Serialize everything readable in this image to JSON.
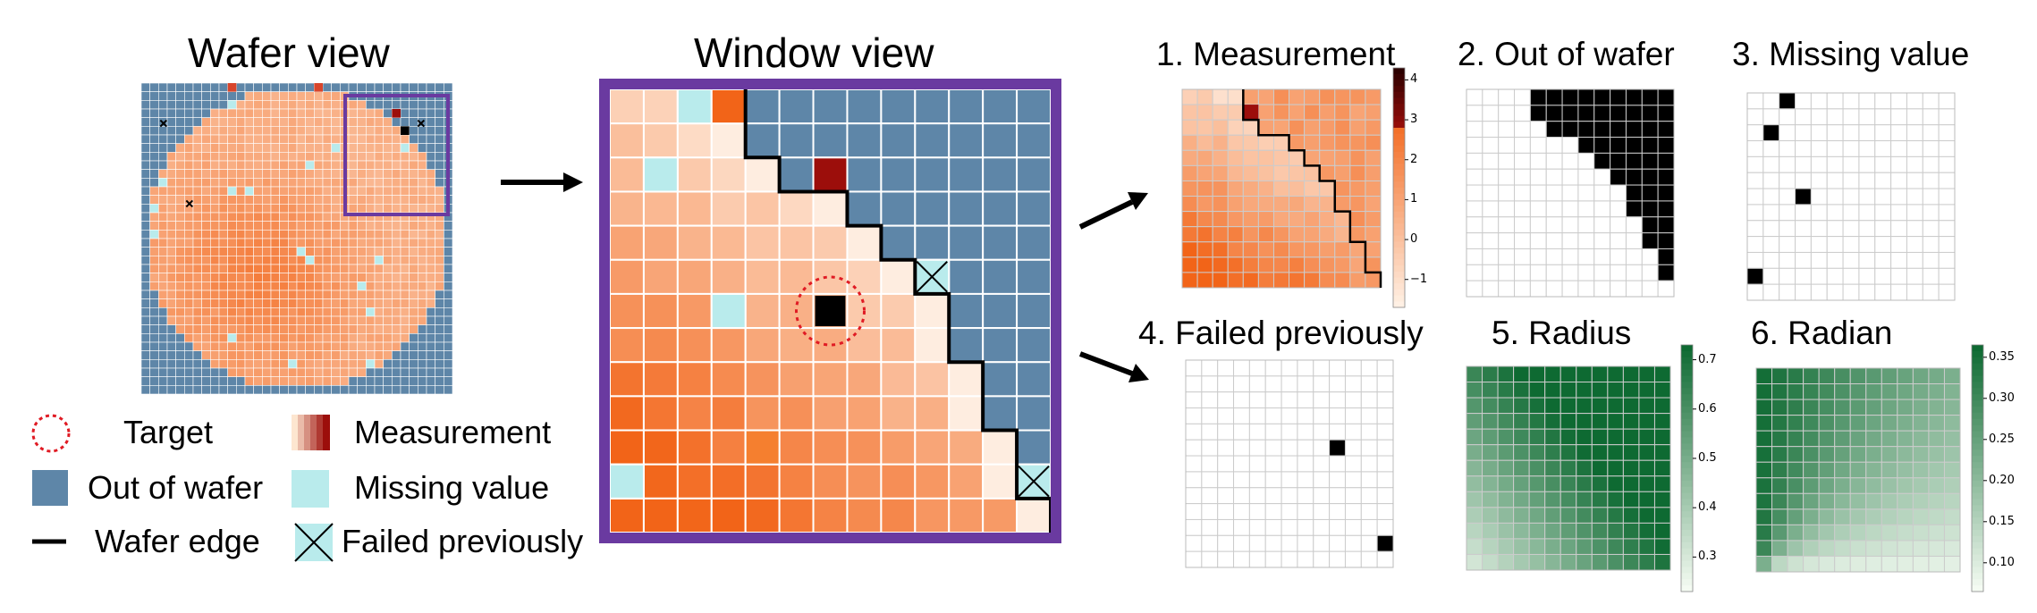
{
  "titles": {
    "wafer": "Wafer view",
    "window": "Window view"
  },
  "panels": [
    {
      "id": "measurement",
      "title": "1. Measurement"
    },
    {
      "id": "out_of_wafer",
      "title": "2. Out of wafer"
    },
    {
      "id": "missing_value",
      "title": "3. Missing value"
    },
    {
      "id": "failed_previously",
      "title": "4. Failed previously"
    },
    {
      "id": "radius",
      "title": "5. Radius"
    },
    {
      "id": "radian",
      "title": "6. Radian"
    }
  ],
  "legend": {
    "target": "Target",
    "measurement": "Measurement",
    "out_of_wafer": "Out of wafer",
    "missing_value": "Missing value",
    "wafer_edge": "Wafer edge",
    "failed_previously": "Failed previously"
  },
  "colorbars": {
    "measurement": {
      "ticks": [
        "4",
        "3",
        "2",
        "1",
        "0",
        "−1"
      ]
    },
    "radius": {
      "ticks": [
        "0.7",
        "0.6",
        "0.5",
        "0.4",
        "0.3"
      ]
    },
    "radian": {
      "ticks": [
        "0.35",
        "0.30",
        "0.25",
        "0.20",
        "0.15",
        "0.10"
      ]
    }
  },
  "colors": {
    "out_of_wafer": "#5e86a8",
    "missing_value": "#b9ebec",
    "window_frame": "#6a3aa0",
    "target_ring": "#e01b24",
    "measurement_low": "#fff3e8",
    "measurement_high": "#f26418",
    "measurement_peak": "#9c0e0b",
    "green_low": "#f4fbf2",
    "green_high": "#0e6a32"
  },
  "icons": [
    "right-arrow-icon",
    "target-circle-icon",
    "cross-icon"
  ]
}
